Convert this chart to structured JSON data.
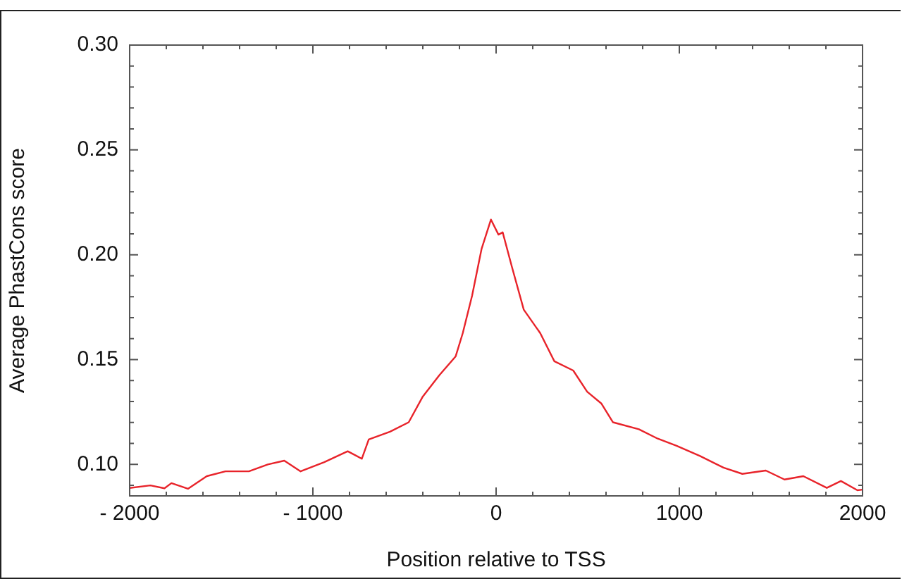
{
  "chart_data": {
    "type": "line",
    "xlabel": "Position relative to TSS",
    "ylabel": "Average PhastCons score",
    "x": [
      -2000,
      -1887,
      -1810,
      -1772,
      -1682,
      -1579,
      -1477,
      -1349,
      -1246,
      -1156,
      -1067,
      -938,
      -810,
      -733,
      -695,
      -579,
      -477,
      -400,
      -310,
      -221,
      -182,
      -131,
      -79,
      -28,
      13,
      36,
      87,
      151,
      241,
      318,
      421,
      497,
      574,
      638,
      779,
      882,
      985,
      1113,
      1241,
      1344,
      1472,
      1574,
      1677,
      1805,
      1882,
      1972,
      2000
    ],
    "series": [
      {
        "color": "#e8232a",
        "values": [
          0.0888,
          0.09,
          0.0886,
          0.0911,
          0.0884,
          0.0944,
          0.0967,
          0.0967,
          0.1,
          0.1018,
          0.0967,
          0.1011,
          0.1063,
          0.1027,
          0.1119,
          0.1156,
          0.1201,
          0.1324,
          0.1425,
          0.1515,
          0.1626,
          0.1805,
          0.2029,
          0.2168,
          0.2096,
          0.2107,
          0.194,
          0.1738,
          0.1626,
          0.1492,
          0.1448,
          0.1347,
          0.1291,
          0.1201,
          0.1168,
          0.1123,
          0.1089,
          0.104,
          0.0985,
          0.0955,
          0.0971,
          0.0928,
          0.0944,
          0.0888,
          0.0921,
          0.0877,
          0.088
        ]
      }
    ],
    "xlim": [
      -2000,
      2000
    ],
    "xticks": [
      {
        "value": -2000,
        "label": "- 2000"
      },
      {
        "value": -1800,
        "label": null
      },
      {
        "value": -1600,
        "label": null
      },
      {
        "value": -1400,
        "label": null
      },
      {
        "value": -1200,
        "label": null
      },
      {
        "value": -1000,
        "label": "- 1000"
      },
      {
        "value": -800,
        "label": null
      },
      {
        "value": -600,
        "label": null
      },
      {
        "value": -400,
        "label": null
      },
      {
        "value": -200,
        "label": null
      },
      0,
      {
        "value": 200,
        "label": null
      },
      {
        "value": 400,
        "label": null
      },
      {
        "value": 600,
        "label": null
      },
      {
        "value": 800,
        "label": null
      },
      1000,
      {
        "value": 1200,
        "label": null
      },
      {
        "value": 1400,
        "label": null
      },
      {
        "value": 1600,
        "label": null
      },
      {
        "value": 1800,
        "label": null
      },
      2000
    ],
    "ylim": [
      0.085,
      0.3
    ],
    "yticks": [
      {
        "value": 0.09,
        "label": null
      },
      {
        "value": 0.1,
        "label": "0.10"
      },
      {
        "value": 0.11,
        "label": null
      },
      {
        "value": 0.12,
        "label": null
      },
      {
        "value": 0.13,
        "label": null
      },
      {
        "value": 0.14,
        "label": null
      },
      {
        "value": 0.15,
        "label": "0.15"
      },
      {
        "value": 0.16,
        "label": null
      },
      {
        "value": 0.17,
        "label": null
      },
      {
        "value": 0.18,
        "label": null
      },
      {
        "value": 0.19,
        "label": null
      },
      {
        "value": 0.2,
        "label": "0.20"
      },
      {
        "value": 0.21,
        "label": null
      },
      {
        "value": 0.22,
        "label": null
      },
      {
        "value": 0.23,
        "label": null
      },
      {
        "value": 0.24,
        "label": null
      },
      {
        "value": 0.25,
        "label": "0.25"
      },
      {
        "value": 0.26,
        "label": null
      },
      {
        "value": 0.27,
        "label": null
      },
      {
        "value": 0.28,
        "label": null
      },
      {
        "value": 0.29,
        "label": null
      },
      {
        "value": 0.3,
        "label": "0.30"
      }
    ],
    "grid": false,
    "legend": false,
    "marker": "none",
    "line_style": "solid"
  }
}
